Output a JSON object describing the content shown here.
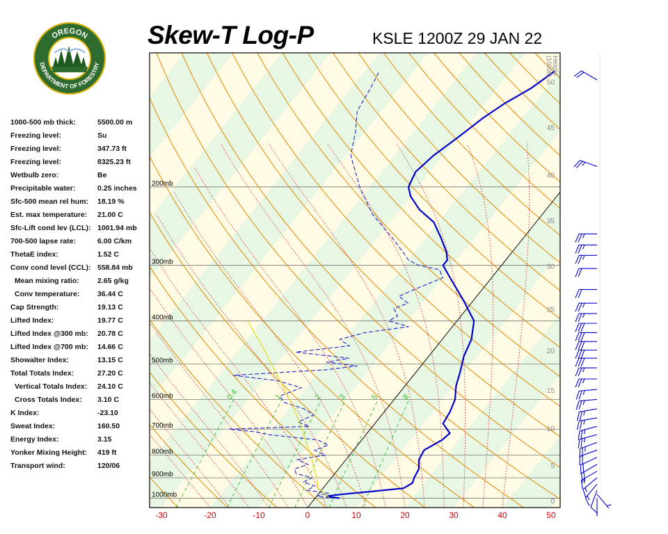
{
  "header": {
    "title": "Skew-T Log-P",
    "station": "KSLE 1200Z 29 JAN 22"
  },
  "logo": {
    "top_text": "OREGON",
    "bottom_text": "DEPARTMENT OF FORESTRY",
    "ring_color": "#2e6b2e",
    "accent_color": "#e0b400"
  },
  "stats": [
    {
      "label": "1000-500 mb thick:",
      "value": "5500.00 m"
    },
    {
      "label": "Freezing level:",
      "value": "Su"
    },
    {
      "label": "Freezing level:",
      "value": "347.73 ft"
    },
    {
      "label": "Freezing level:",
      "value": "8325.23 ft"
    },
    {
      "label": "Wetbulb zero:",
      "value": "Be"
    },
    {
      "label": "Precipitable water:",
      "value": "0.25 inches"
    },
    {
      "label": "Sfc-500 mean rel hum:",
      "value": "18.19 %"
    },
    {
      "label": "Est. max temperature:",
      "value": "21.00 C"
    },
    {
      "label": "Sfc-Lift cond lev (LCL):",
      "value": "1001.94 mb"
    },
    {
      "label": "700-500 lapse rate:",
      "value": "6.00 C/km"
    },
    {
      "label": "ThetaE index:",
      "value": "1.52 C"
    },
    {
      "label": "Conv cond level (CCL):",
      "value": "558.84 mb"
    },
    {
      "label": "Mean mixing ratio:",
      "value": "2.65 g/kg",
      "indent": true
    },
    {
      "label": "Conv temperature:",
      "value": "36.44 C",
      "indent": true
    },
    {
      "label": "Cap Strength:",
      "value": "19.13 C"
    },
    {
      "label": "Lifted Index:",
      "value": "19.77 C"
    },
    {
      "label": "Lifted Index @300 mb:",
      "value": "20.78 C"
    },
    {
      "label": "Lifted Index @700 mb:",
      "value": "14.66 C"
    },
    {
      "label": "Showalter Index:",
      "value": "13.15 C"
    },
    {
      "label": "Total Totals Index:",
      "value": "27.20 C"
    },
    {
      "label": "Vertical Totals Index:",
      "value": "24.10 C",
      "indent": true
    },
    {
      "label": "Cross Totals Index:",
      "value": "3.10 C",
      "indent": true
    },
    {
      "label": "K Index:",
      "value": "-23.10"
    },
    {
      "label": "Sweat Index:",
      "value": "160.50"
    },
    {
      "label": "Energy Index:",
      "value": "3.15"
    },
    {
      "label": "Yonker Mixing Height:",
      "value": "419 ft"
    },
    {
      "label": "Transport wind:",
      "value": "120/06"
    }
  ],
  "chart_data": {
    "type": "line",
    "title": "Skew-T Log-P",
    "subtitle": "KSLE 1200Z 29 JAN 22",
    "x_axis": {
      "range": [
        -30,
        50
      ],
      "ticks": [
        -30,
        -20,
        -10,
        0,
        10,
        20,
        30,
        40,
        50
      ],
      "color": "#cc0000"
    },
    "pressure_levels": [
      {
        "p": 200,
        "label": "200mb"
      },
      {
        "p": 300,
        "label": "300mb"
      },
      {
        "p": 400,
        "label": "400mb"
      },
      {
        "p": 500,
        "label": "500mb"
      },
      {
        "p": 600,
        "label": "600mb"
      },
      {
        "p": 700,
        "label": "700mb"
      },
      {
        "p": 800,
        "label": "800mb"
      },
      {
        "p": 900,
        "label": "900mb"
      },
      {
        "p": 1000,
        "label": "1000mb"
      }
    ],
    "height_axis": {
      "title": "Height",
      "unit": "(1000ft)",
      "ticks": [
        {
          "p": 1013,
          "label": "0"
        },
        {
          "p": 843,
          "label": "5"
        },
        {
          "p": 697,
          "label": "10"
        },
        {
          "p": 572,
          "label": "15"
        },
        {
          "p": 466,
          "label": "20"
        },
        {
          "p": 376,
          "label": "25"
        },
        {
          "p": 301,
          "label": "30"
        },
        {
          "p": 238,
          "label": "35"
        },
        {
          "p": 188,
          "label": "40"
        },
        {
          "p": 147,
          "label": "45"
        },
        {
          "p": 116,
          "label": "50"
        }
      ]
    },
    "mixing_ratio_labels": [
      "0.4",
      "1",
      "2",
      "3",
      "5",
      "8"
    ],
    "series": [
      {
        "kind": "temperature",
        "color": "#0000cc",
        "points": [
          [
            1000,
            5
          ],
          [
            995,
            3
          ],
          [
            990,
            2
          ],
          [
            980,
            5
          ],
          [
            965,
            11
          ],
          [
            950,
            16.5
          ],
          [
            925,
            17.5
          ],
          [
            900,
            17
          ],
          [
            860,
            16.5
          ],
          [
            820,
            15
          ],
          [
            780,
            14.5
          ],
          [
            740,
            16.5
          ],
          [
            715,
            17
          ],
          [
            680,
            14
          ],
          [
            640,
            13.5
          ],
          [
            600,
            12.5
          ],
          [
            560,
            10.5
          ],
          [
            520,
            9
          ],
          [
            480,
            7.2
          ],
          [
            440,
            6
          ],
          [
            400,
            3.5
          ],
          [
            360,
            -2
          ],
          [
            320,
            -8.5
          ],
          [
            300,
            -12
          ],
          [
            292,
            -12
          ],
          [
            280,
            -13.5
          ],
          [
            260,
            -17
          ],
          [
            240,
            -21
          ],
          [
            225,
            -26
          ],
          [
            210,
            -30
          ],
          [
            200,
            -32
          ],
          [
            185,
            -33
          ],
          [
            170,
            -32
          ],
          [
            155,
            -30
          ],
          [
            140,
            -28
          ],
          [
            130,
            -26
          ],
          [
            120,
            -23
          ],
          [
            110,
            -21
          ]
        ]
      },
      {
        "kind": "dewpoint",
        "color": "#2222cc",
        "points": [
          [
            1000,
            3
          ],
          [
            990,
            0
          ],
          [
            975,
            2
          ],
          [
            960,
            -3
          ],
          [
            940,
            -2
          ],
          [
            920,
            -5
          ],
          [
            900,
            -4
          ],
          [
            880,
            -8
          ],
          [
            860,
            -9
          ],
          [
            840,
            -7
          ],
          [
            820,
            -10
          ],
          [
            800,
            -5
          ],
          [
            780,
            -8
          ],
          [
            760,
            -6
          ],
          [
            740,
            -9
          ],
          [
            720,
            -20
          ],
          [
            710,
            -23
          ],
          [
            700,
            -29
          ],
          [
            690,
            -13
          ],
          [
            675,
            -16
          ],
          [
            650,
            -14
          ],
          [
            630,
            -17
          ],
          [
            610,
            -22
          ],
          [
            590,
            -24
          ],
          [
            565,
            -21
          ],
          [
            545,
            -27
          ],
          [
            530,
            -37
          ],
          [
            515,
            -19
          ],
          [
            505,
            -13
          ],
          [
            495,
            -20
          ],
          [
            485,
            -16
          ],
          [
            470,
            -28
          ],
          [
            455,
            -18
          ],
          [
            440,
            -21
          ],
          [
            425,
            -17
          ],
          [
            412,
            -9
          ],
          [
            400,
            -14
          ],
          [
            390,
            -13
          ],
          [
            375,
            -15
          ],
          [
            365,
            -13
          ],
          [
            352,
            -16
          ],
          [
            335,
            -13
          ],
          [
            320,
            -10
          ],
          [
            307,
            -12
          ],
          [
            300,
            -17
          ],
          [
            292,
            -20
          ],
          [
            282,
            -22
          ],
          [
            260,
            -27
          ],
          [
            230,
            -35
          ],
          [
            200,
            -42
          ],
          [
            170,
            -49
          ],
          [
            150,
            -52
          ],
          [
            135,
            -55
          ],
          [
            120,
            -56
          ],
          [
            110,
            -57
          ]
        ]
      },
      {
        "kind": "parcel",
        "color": "#dddd00",
        "points": [
          [
            1000,
            3
          ],
          [
            950,
            -1
          ],
          [
            900,
            -3
          ],
          [
            850,
            -5.5
          ],
          [
            800,
            -8
          ],
          [
            750,
            -11
          ],
          [
            700,
            -14
          ],
          [
            650,
            -17.5
          ],
          [
            600,
            -21.5
          ],
          [
            550,
            -26
          ],
          [
            500,
            -31
          ],
          [
            450,
            -36.5
          ],
          [
            400,
            -43
          ]
        ]
      }
    ],
    "wind_barbs": [
      {
        "p": 1000,
        "dir": 180,
        "kt": 0
      },
      {
        "p": 980,
        "dir": 140,
        "kt": 5
      },
      {
        "p": 960,
        "dir": 200,
        "kt": 10
      },
      {
        "p": 930,
        "dir": 220,
        "kt": 15
      },
      {
        "p": 900,
        "dir": 230,
        "kt": 15
      },
      {
        "p": 870,
        "dir": 240,
        "kt": 15
      },
      {
        "p": 840,
        "dir": 240,
        "kt": 20
      },
      {
        "p": 810,
        "dir": 245,
        "kt": 20
      },
      {
        "p": 780,
        "dir": 250,
        "kt": 20
      },
      {
        "p": 750,
        "dir": 250,
        "kt": 25
      },
      {
        "p": 720,
        "dir": 255,
        "kt": 25
      },
      {
        "p": 690,
        "dir": 255,
        "kt": 25
      },
      {
        "p": 660,
        "dir": 260,
        "kt": 25
      },
      {
        "p": 630,
        "dir": 260,
        "kt": 25
      },
      {
        "p": 600,
        "dir": 265,
        "kt": 25
      },
      {
        "p": 570,
        "dir": 265,
        "kt": 25
      },
      {
        "p": 540,
        "dir": 270,
        "kt": 25
      },
      {
        "p": 510,
        "dir": 270,
        "kt": 25
      },
      {
        "p": 485,
        "dir": 270,
        "kt": 30
      },
      {
        "p": 465,
        "dir": 270,
        "kt": 30
      },
      {
        "p": 445,
        "dir": 270,
        "kt": 30
      },
      {
        "p": 425,
        "dir": 270,
        "kt": 30
      },
      {
        "p": 405,
        "dir": 270,
        "kt": 30
      },
      {
        "p": 385,
        "dir": 270,
        "kt": 25
      },
      {
        "p": 365,
        "dir": 270,
        "kt": 25
      },
      {
        "p": 340,
        "dir": 270,
        "kt": 20
      },
      {
        "p": 305,
        "dir": 270,
        "kt": 20
      },
      {
        "p": 285,
        "dir": 270,
        "kt": 25
      },
      {
        "p": 270,
        "dir": 270,
        "kt": 25
      },
      {
        "p": 255,
        "dir": 270,
        "kt": 25
      },
      {
        "p": 180,
        "dir": 290,
        "kt": 25
      },
      {
        "p": 115,
        "dir": 300,
        "kt": 20
      }
    ]
  }
}
